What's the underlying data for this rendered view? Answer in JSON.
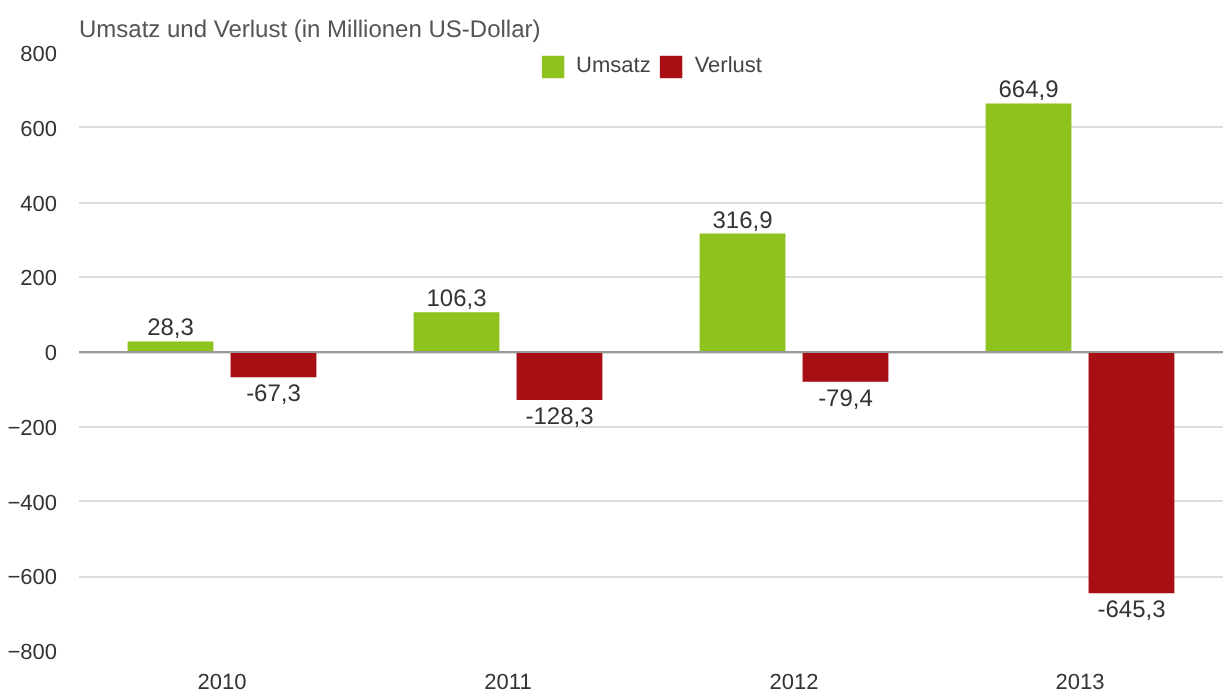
{
  "chart_data": {
    "type": "bar",
    "title": "Umsatz und Verlust (in Millionen US-Dollar)",
    "categories": [
      "2010",
      "2011",
      "2012",
      "2013"
    ],
    "series": [
      {
        "name": "Umsatz",
        "color": "#8dc21f",
        "values": [
          28.3,
          106.3,
          316.9,
          664.9
        ],
        "value_labels": [
          "28,3",
          "106,3",
          "316,9",
          "664,9"
        ]
      },
      {
        "name": "Verlust",
        "color": "#a80f14",
        "values": [
          -67.3,
          -128.3,
          -79.4,
          -645.3
        ],
        "value_labels": [
          "-67,3",
          "-128,3",
          "-79,4",
          "-645,3"
        ]
      }
    ],
    "ylim": [
      -800,
      800
    ],
    "yticks": [
      -800,
      -600,
      -400,
      -200,
      0,
      200,
      400,
      600,
      800
    ],
    "grid": "y",
    "legend": "top"
  }
}
